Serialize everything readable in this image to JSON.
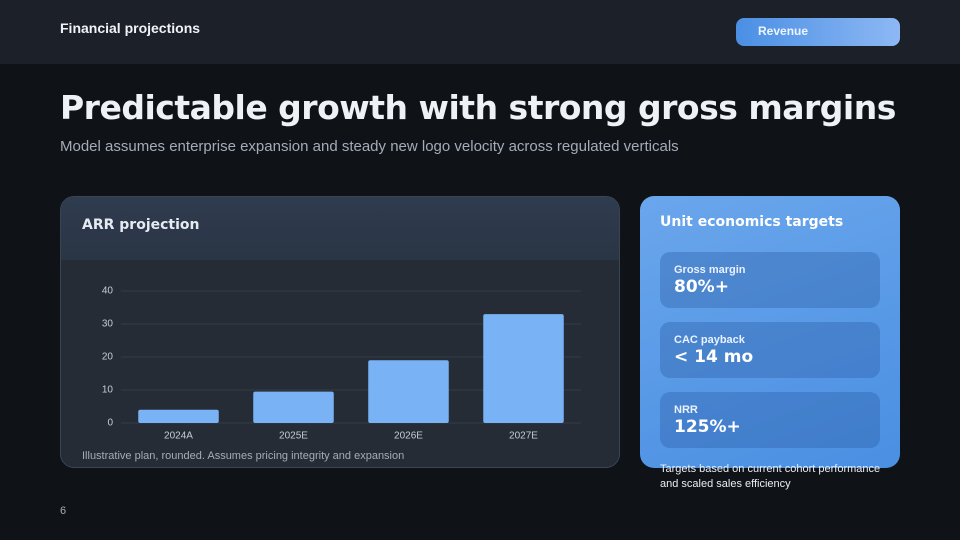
{
  "header": {
    "title": "Financial projections",
    "tab": "Revenue"
  },
  "title": "Predictable growth with strong gross margins",
  "subtitle": "Model assumes enterprise expansion and steady new logo velocity across regulated verticals",
  "chart_data": {
    "type": "bar",
    "title": "ARR projection",
    "categories": [
      "2024A",
      "2025E",
      "2026E",
      "2027E"
    ],
    "values": [
      4,
      9.5,
      19,
      33
    ],
    "color": "#7ab3f5",
    "ylim": [
      0,
      40
    ],
    "yticks": [
      0,
      10,
      20,
      30,
      40
    ],
    "grid": true,
    "footnote": "Illustrative plan, rounded. Assumes pricing integrity and expansion"
  },
  "panel": {
    "title": "Unit economics targets",
    "metrics": [
      {
        "label": "Gross margin",
        "value": "80%+"
      },
      {
        "label": "CAC payback",
        "value": "< 14 mo"
      },
      {
        "label": "NRR",
        "value": "125%+"
      }
    ],
    "note": "Targets based on current cohort performance and scaled sales efficiency"
  },
  "page_number": "6"
}
